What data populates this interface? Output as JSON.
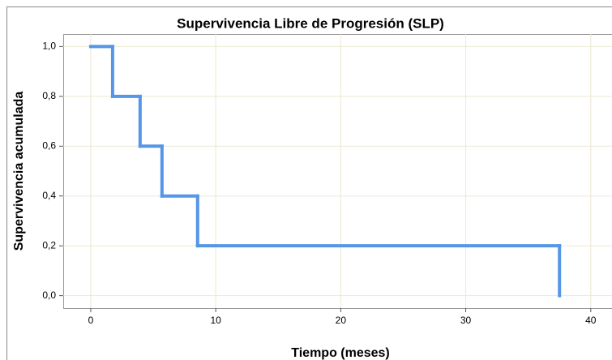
{
  "chart_data": {
    "type": "line",
    "step": "post",
    "title": "Supervivencia Libre de Progresión (SLP)",
    "x_label": "Tiempo (meses)",
    "y_label": "Supervivencia acumulada",
    "x": [
      0,
      1.75,
      3.95,
      5.7,
      8.55,
      37.5
    ],
    "values": [
      1.0,
      0.8,
      0.6,
      0.4,
      0.2,
      0.0
    ],
    "color": "#5596e6",
    "xlim": [
      -2.2,
      41.7
    ],
    "xticks": [
      0,
      10,
      20,
      30,
      40
    ],
    "ylim": [
      -0.05,
      1.05
    ],
    "yticks": [
      {
        "value": 0,
        "label": "0,0"
      },
      {
        "value": 0.2,
        "label": "0,2"
      },
      {
        "value": 0.4,
        "label": "0,4"
      },
      {
        "value": 0.6,
        "label": "0,6"
      },
      {
        "value": 0.8,
        "label": "0,8"
      },
      {
        "value": 1.0,
        "label": "1,0"
      }
    ],
    "grid": true
  }
}
